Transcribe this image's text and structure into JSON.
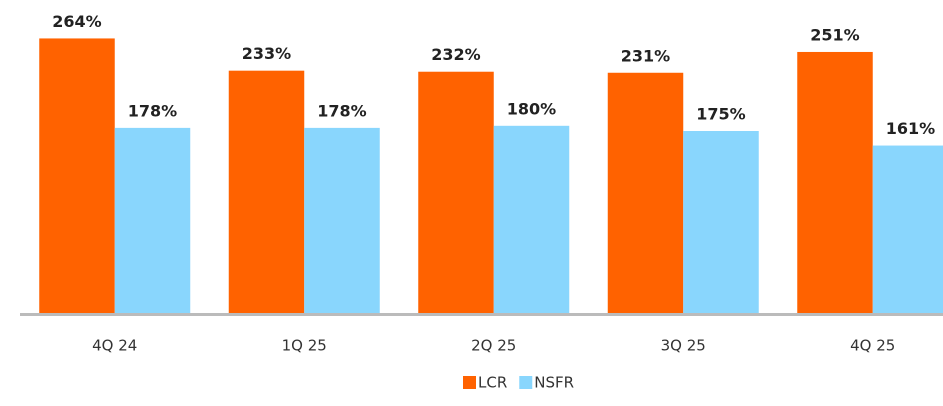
{
  "chart_data": {
    "type": "bar",
    "categories": [
      "4Q 24",
      "1Q 25",
      "2Q 25",
      "3Q 25",
      "4Q 25"
    ],
    "series": [
      {
        "name": "LCR",
        "color": "#ff6200",
        "values": [
          264,
          233,
          232,
          231,
          251
        ],
        "value_labels": [
          "264%",
          "233%",
          "232%",
          "231%",
          "251%"
        ]
      },
      {
        "name": "NSFR",
        "color": "#89d6fd",
        "values": [
          178,
          178,
          180,
          175,
          161
        ],
        "value_labels": [
          "178%",
          "178%",
          "180%",
          "175%",
          "161%"
        ]
      }
    ],
    "ylim": [
      0,
      300
    ],
    "legend": "bottom"
  }
}
